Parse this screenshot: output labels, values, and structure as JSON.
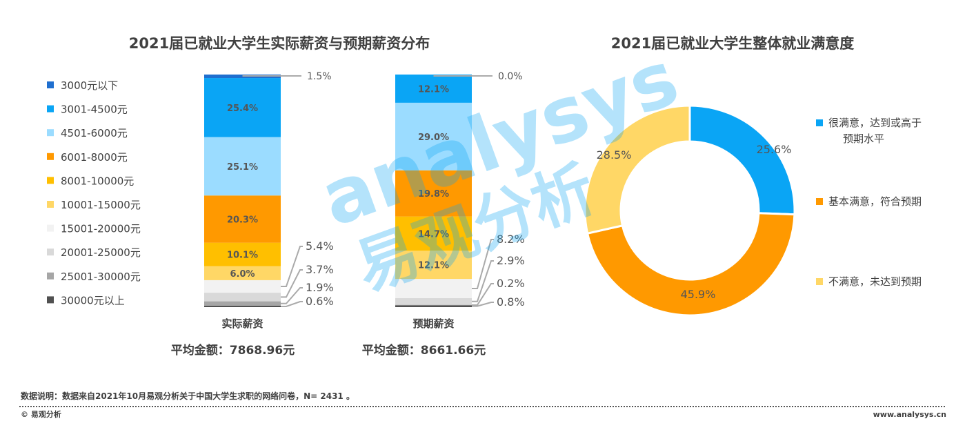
{
  "watermark": {
    "text_en": "analysys",
    "text_cn": "易观分析"
  },
  "chart_data": [
    {
      "type": "bar",
      "stacked": true,
      "title": "2021届已就业大学生实际薪资与预期薪资分布",
      "categories": [
        "实际薪资",
        "预期薪资"
      ],
      "averages": [
        "平均金额：7868.96元",
        "平均金额：8661.66元"
      ],
      "ylim": [
        0,
        100
      ],
      "legend_position": "left",
      "series": [
        {
          "name": "30000元以上",
          "color": "#505050",
          "values": [
            0.6,
            0.8
          ]
        },
        {
          "name": "25001-30000元",
          "color": "#a6a6a6",
          "values": [
            1.9,
            0.2
          ]
        },
        {
          "name": "20001-25000元",
          "color": "#d9d9d9",
          "values": [
            3.7,
            2.9
          ]
        },
        {
          "name": "15001-20000元",
          "color": "#f2f2f2",
          "values": [
            5.4,
            8.2
          ]
        },
        {
          "name": "10001-15000元",
          "color": "#ffd766",
          "values": [
            6.0,
            12.1
          ]
        },
        {
          "name": "8001-10000元",
          "color": "#ffbf00",
          "values": [
            10.1,
            14.7
          ]
        },
        {
          "name": "6001-8000元",
          "color": "#ff9900",
          "values": [
            20.3,
            19.8
          ]
        },
        {
          "name": "4501-6000元",
          "color": "#9bdcff",
          "values": [
            25.1,
            29.0
          ]
        },
        {
          "name": "3001-4500元",
          "color": "#0aa5f5",
          "values": [
            25.4,
            12.1
          ]
        },
        {
          "name": "3000元以下",
          "color": "#1f6fcf",
          "values": [
            1.5,
            0.0
          ]
        }
      ],
      "value_labels": [
        [
          "0.6%",
          "1.9%",
          "3.7%",
          "5.4%",
          "6.0%",
          "10.1%",
          "20.3%",
          "25.1%",
          "25.4%",
          "1.5%"
        ],
        [
          "0.8%",
          "0.2%",
          "2.9%",
          "8.2%",
          "12.1%",
          "14.7%",
          "19.8%",
          "29.0%",
          "12.1%",
          "0.0%"
        ]
      ]
    },
    {
      "type": "pie",
      "donut": true,
      "title": "2021届已就业大学生整体就业满意度",
      "legend_position": "right",
      "slices": [
        {
          "name": "很满意，达到或高于预期水平",
          "name_lines": [
            "很满意，达到或高于",
            "预期水平"
          ],
          "value": 25.6,
          "label": "25.6%",
          "color": "#0aa5f5"
        },
        {
          "name": "基本满意，符合预期",
          "name_lines": [
            "基本满意，符合预期"
          ],
          "value": 45.9,
          "label": "45.9%",
          "color": "#ff9900"
        },
        {
          "name": "不满意，未达到预期",
          "name_lines": [
            "不满意，未达到预期"
          ],
          "value": 28.5,
          "label": "28.5%",
          "color": "#ffd766"
        }
      ]
    }
  ],
  "footer": {
    "note": "数据说明：数据来自2021年10月易观分析关于中国大学生求职的网络问卷，N= 2431 。",
    "copyright": "© 易观分析",
    "website": "www.analysys.cn"
  }
}
